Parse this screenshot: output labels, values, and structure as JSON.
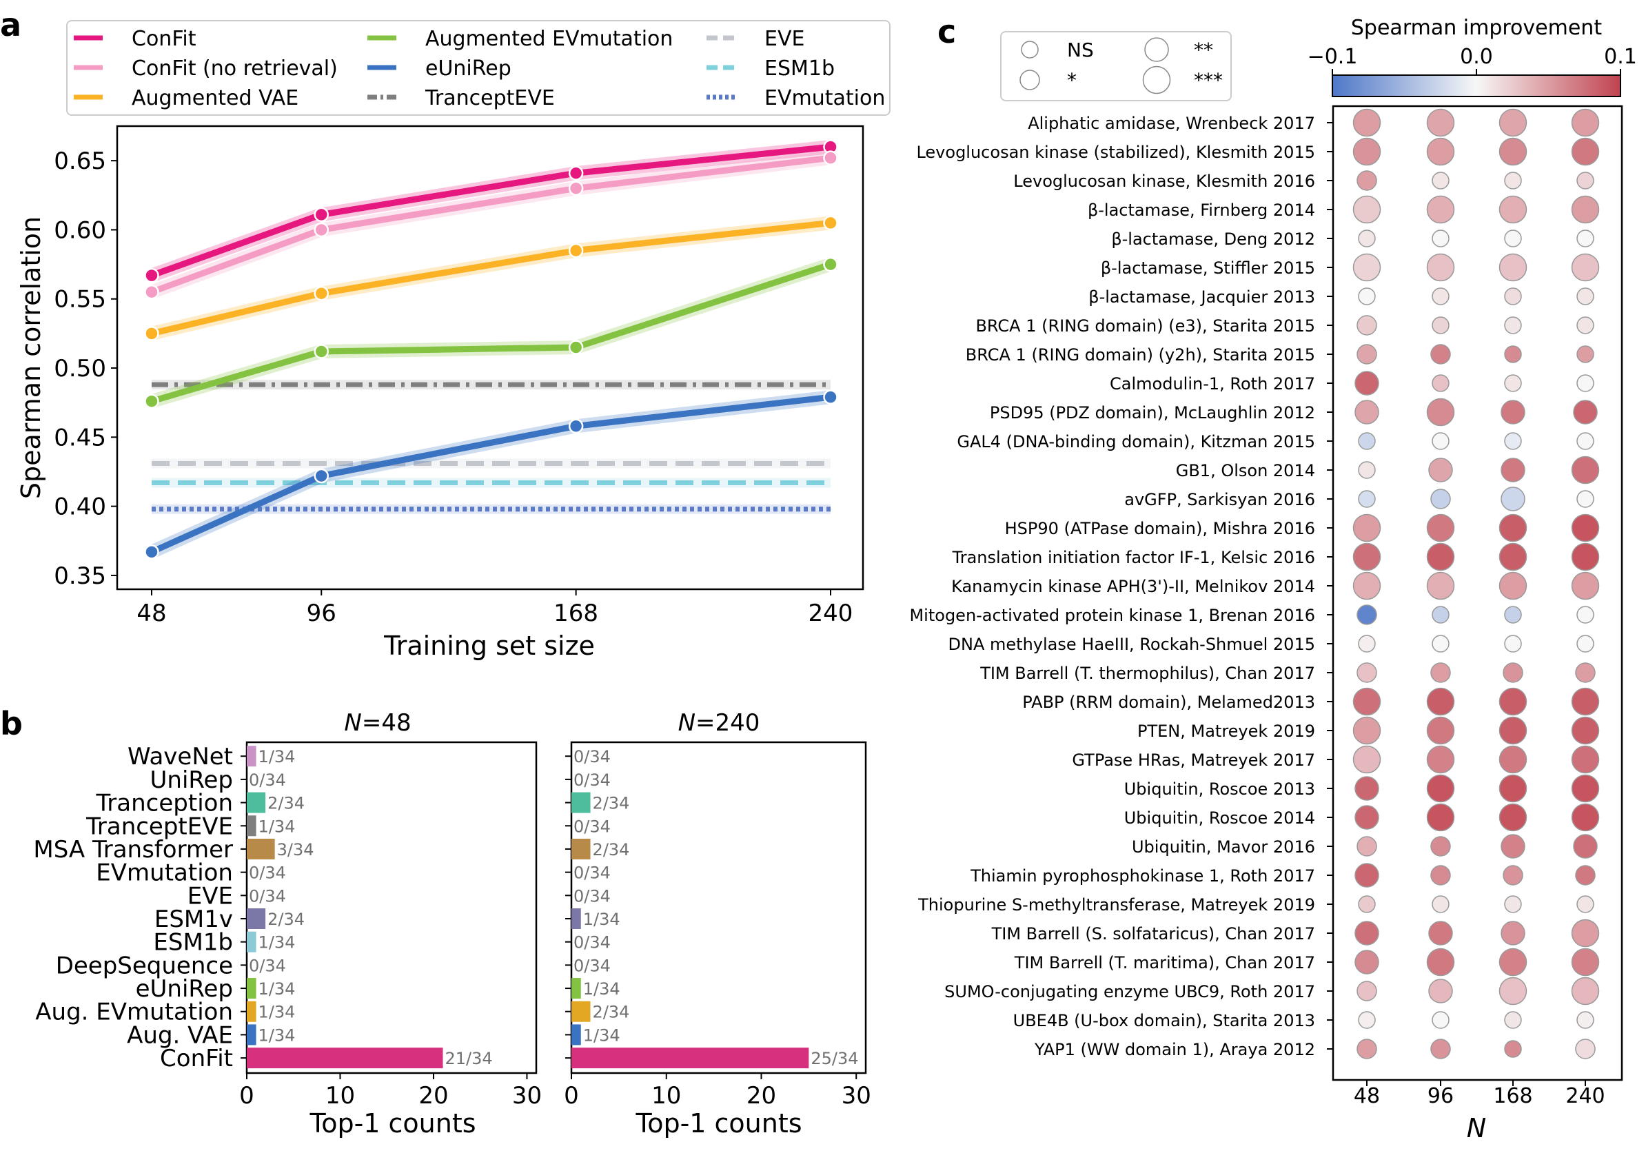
{
  "colors": {
    "confit": "#e6177f",
    "confit_nr": "#f59cc4",
    "aug_vae": "#fbb224",
    "aug_evm": "#84c341",
    "eunirep": "#3a73c1",
    "trancepteve": "#7f7f7f",
    "eve": "#c3c6cc",
    "esm1b": "#7fcfdc",
    "evmutation": "#5b7ac6",
    "heat_neg": "#4f78c8",
    "heat_mid": "#f7f7f7",
    "heat_pos": "#c0434f"
  },
  "panel_labels": {
    "a": "a",
    "b": "b",
    "c": "c"
  },
  "chart_data": [
    {
      "type": "line",
      "panel": "a",
      "xlabel": "Training set size",
      "ylabel": "Spearman correlation",
      "x": [
        48,
        96,
        168,
        240
      ],
      "ylim": [
        0.34,
        0.675
      ],
      "yticks": [
        "0.35",
        "0.40",
        "0.45",
        "0.50",
        "0.55",
        "0.60",
        "0.65"
      ],
      "legend_position": "top",
      "series": [
        {
          "name": "ConFit",
          "color_key": "confit",
          "style": "solid-marker",
          "values": [
            0.567,
            0.611,
            0.641,
            0.66
          ]
        },
        {
          "name": "ConFit (no retrieval)",
          "color_key": "confit_nr",
          "style": "solid-marker",
          "values": [
            0.555,
            0.6,
            0.63,
            0.652
          ]
        },
        {
          "name": "Augmented VAE",
          "color_key": "aug_vae",
          "style": "solid-marker",
          "values": [
            0.525,
            0.554,
            0.585,
            0.605
          ]
        },
        {
          "name": "Augmented EVmutation",
          "color_key": "aug_evm",
          "style": "solid-marker",
          "values": [
            0.476,
            0.512,
            0.515,
            0.575
          ]
        },
        {
          "name": "eUniRep",
          "color_key": "eunirep",
          "style": "solid-marker",
          "values": [
            0.367,
            0.422,
            0.458,
            0.479
          ]
        },
        {
          "name": "TranceptEVE",
          "color_key": "trancepteve",
          "style": "dashdot",
          "values": [
            0.488,
            0.488,
            0.488,
            0.488
          ]
        },
        {
          "name": "EVE",
          "color_key": "eve",
          "style": "dashed",
          "values": [
            0.431,
            0.431,
            0.431,
            0.431
          ]
        },
        {
          "name": "ESM1b",
          "color_key": "esm1b",
          "style": "dashed",
          "values": [
            0.417,
            0.417,
            0.417,
            0.417
          ]
        },
        {
          "name": "EVmutation",
          "color_key": "evmutation",
          "style": "dotted",
          "values": [
            0.398,
            0.398,
            0.398,
            0.398
          ]
        }
      ]
    },
    {
      "type": "bar",
      "panel": "b",
      "orientation": "horizontal",
      "xlabel": "Top-1 counts",
      "xlim": [
        0,
        31
      ],
      "xticks": [
        0,
        10,
        20,
        30
      ],
      "total": 34,
      "categories": [
        "WaveNet",
        "UniRep",
        "Tranception",
        "TranceptEVE",
        "MSA Transformer",
        "EVmutation",
        "EVE",
        "ESM1v",
        "ESM1b",
        "DeepSequence",
        "eUniRep",
        "Aug. EVmutation",
        "Aug. VAE",
        "ConFit"
      ],
      "bar_colors": [
        "#c993c7",
        "#9ecae1",
        "#4dbd9d",
        "#7f7f7f",
        "#b88a47",
        "#5b7ac6",
        "#c3c6cc",
        "#7b78a8",
        "#8ccad8",
        "#b0b0b0",
        "#84c341",
        "#e3a823",
        "#3a73c1",
        "#d6307f"
      ],
      "subplots": [
        {
          "title_var": "N",
          "title_val": "=48",
          "values": [
            1,
            0,
            2,
            1,
            3,
            0,
            0,
            2,
            1,
            0,
            1,
            1,
            1,
            21
          ],
          "labels": [
            "1/34",
            "0/34",
            "2/34",
            "1/34",
            "3/34",
            "0/34",
            "0/34",
            "2/34",
            "1/34",
            "0/34",
            "1/34",
            "1/34",
            "1/34",
            "21/34"
          ]
        },
        {
          "title_var": "N",
          "title_val": "=240",
          "values": [
            0,
            0,
            2,
            0,
            2,
            0,
            0,
            1,
            0,
            0,
            1,
            2,
            1,
            25
          ],
          "labels": [
            "0/34",
            "0/34",
            "2/34",
            "0/34",
            "2/34",
            "0/34",
            "0/34",
            "1/34",
            "0/34",
            "0/34",
            "1/34",
            "2/34",
            "1/34",
            "25/34"
          ]
        }
      ]
    },
    {
      "type": "heatmap",
      "panel": "c",
      "xlabel": "N",
      "x": [
        "48",
        "96",
        "168",
        "240"
      ],
      "colorbar": {
        "title": "Spearman improvement",
        "min": -0.1,
        "max": 0.1,
        "ticks": [
          "−0.1",
          "0.0",
          "0.1"
        ]
      },
      "size_legend": [
        {
          "label": "NS",
          "level": 0
        },
        {
          "label": "*",
          "level": 1
        },
        {
          "label": "**",
          "level": 2
        },
        {
          "label": "***",
          "level": 3
        }
      ],
      "rows": [
        {
          "label": "Aliphatic amidase, Wrenbeck 2017",
          "values": [
            0.05,
            0.045,
            0.045,
            0.05
          ],
          "sig": [
            3,
            3,
            3,
            3
          ]
        },
        {
          "label": "Levoglucosan kinase (stabilized), Klesmith 2015",
          "values": [
            0.055,
            0.05,
            0.06,
            0.07
          ],
          "sig": [
            3,
            3,
            3,
            3
          ]
        },
        {
          "label": "Levoglucosan kinase, Klesmith 2016",
          "values": [
            0.05,
            0.01,
            0.01,
            0.02
          ],
          "sig": [
            1,
            0,
            0,
            0
          ]
        },
        {
          "label": "β-lactamase, Firnberg 2014",
          "values": [
            0.025,
            0.04,
            0.04,
            0.05
          ],
          "sig": [
            3,
            3,
            3,
            3
          ]
        },
        {
          "label": "β-lactamase, Deng 2012",
          "values": [
            0.01,
            0.0,
            0.0,
            0.0
          ],
          "sig": [
            0,
            0,
            0,
            0
          ]
        },
        {
          "label": "β-lactamase, Stiffler 2015",
          "values": [
            0.02,
            0.03,
            0.03,
            0.03
          ],
          "sig": [
            3,
            3,
            3,
            3
          ]
        },
        {
          "label": "β-lactamase, Jacquier 2013",
          "values": [
            0.0,
            0.01,
            0.015,
            0.01
          ],
          "sig": [
            0,
            0,
            0,
            0
          ]
        },
        {
          "label": "BRCA 1 (RING domain) (e3), Starita 2015",
          "values": [
            0.025,
            0.02,
            0.01,
            0.01
          ],
          "sig": [
            1,
            0,
            0,
            0
          ]
        },
        {
          "label": "BRCA 1 (RING domain) (y2h), Starita 2015",
          "values": [
            0.045,
            0.065,
            0.06,
            0.05
          ],
          "sig": [
            1,
            1,
            0,
            0
          ]
        },
        {
          "label": "Calmodulin-1, Roth 2017",
          "values": [
            0.08,
            0.03,
            0.01,
            0.0
          ],
          "sig": [
            2,
            0,
            0,
            0
          ]
        },
        {
          "label": "PSD95 (PDZ domain), McLaughlin 2012",
          "values": [
            0.045,
            0.06,
            0.07,
            0.08
          ],
          "sig": [
            2,
            3,
            2,
            2
          ]
        },
        {
          "label": "GAL4 (DNA-binding domain), Kitzman 2015",
          "values": [
            -0.025,
            0.0,
            -0.01,
            0.0
          ],
          "sig": [
            0,
            0,
            0,
            0
          ]
        },
        {
          "label": "GB1, Olson 2014",
          "values": [
            0.01,
            0.045,
            0.07,
            0.075
          ],
          "sig": [
            0,
            2,
            2,
            3
          ]
        },
        {
          "label": "avGFP, Sarkisyan 2016",
          "values": [
            -0.02,
            -0.03,
            -0.025,
            0.0
          ],
          "sig": [
            0,
            1,
            2,
            0
          ]
        },
        {
          "label": "HSP90 (ATPase domain), Mishra 2016",
          "values": [
            0.05,
            0.07,
            0.085,
            0.09
          ],
          "sig": [
            3,
            3,
            3,
            3
          ]
        },
        {
          "label": "Translation initiation factor IF-1, Kelsic 2016",
          "values": [
            0.075,
            0.085,
            0.085,
            0.09
          ],
          "sig": [
            3,
            3,
            3,
            3
          ]
        },
        {
          "label": "Kanamycin kinase APH(3')-II, Melnikov 2014",
          "values": [
            0.04,
            0.04,
            0.05,
            0.05
          ],
          "sig": [
            3,
            3,
            3,
            3
          ]
        },
        {
          "label": "Mitogen-activated protein kinase 1, Brenan 2016",
          "values": [
            -0.09,
            -0.03,
            -0.03,
            0.0
          ],
          "sig": [
            1,
            0,
            0,
            0
          ]
        },
        {
          "label": "DNA methylase HaeIII, Rockah-Shmuel 2015",
          "values": [
            0.005,
            0.0,
            0.0,
            0.0
          ],
          "sig": [
            0,
            0,
            0,
            0
          ]
        },
        {
          "label": "TIM Barrell (T. thermophilus), Chan 2017",
          "values": [
            0.03,
            0.05,
            0.055,
            0.05
          ],
          "sig": [
            1,
            1,
            1,
            1
          ]
        },
        {
          "label": "PABP (RRM domain), Melamed2013",
          "values": [
            0.075,
            0.085,
            0.085,
            0.085
          ],
          "sig": [
            3,
            3,
            3,
            3
          ]
        },
        {
          "label": "PTEN, Matreyek 2019",
          "values": [
            0.05,
            0.07,
            0.085,
            0.085
          ],
          "sig": [
            3,
            3,
            3,
            3
          ]
        },
        {
          "label": "GTPase HRas, Matreyek 2017",
          "values": [
            0.035,
            0.065,
            0.07,
            0.075
          ],
          "sig": [
            3,
            3,
            3,
            3
          ]
        },
        {
          "label": "Ubiquitin, Roscoe 2013",
          "values": [
            0.08,
            0.09,
            0.09,
            0.09
          ],
          "sig": [
            2,
            3,
            3,
            3
          ]
        },
        {
          "label": "Ubiquitin, Roscoe 2014",
          "values": [
            0.08,
            0.09,
            0.09,
            0.09
          ],
          "sig": [
            2,
            3,
            3,
            3
          ]
        },
        {
          "label": "Ubiquitin, Mavor 2016",
          "values": [
            0.04,
            0.06,
            0.065,
            0.075
          ],
          "sig": [
            1,
            1,
            2,
            2
          ]
        },
        {
          "label": "Thiamin pyrophosphokinase 1, Roth 2017",
          "values": [
            0.08,
            0.06,
            0.055,
            0.07
          ],
          "sig": [
            2,
            1,
            1,
            1
          ]
        },
        {
          "label": "Thiopurine S-methyltransferase, Matreyek 2019",
          "values": [
            0.025,
            0.01,
            0.01,
            0.01
          ],
          "sig": [
            0,
            0,
            0,
            0
          ]
        },
        {
          "label": "TIM Barrell (S. solfataricus), Chan 2017",
          "values": [
            0.075,
            0.07,
            0.055,
            0.05
          ],
          "sig": [
            2,
            2,
            2,
            3
          ]
        },
        {
          "label": "TIM Barrell (T. maritima), Chan 2017",
          "values": [
            0.06,
            0.07,
            0.065,
            0.065
          ],
          "sig": [
            2,
            3,
            3,
            3
          ]
        },
        {
          "label": "SUMO-conjugating enzyme UBC9, Roth 2017",
          "values": [
            0.03,
            0.035,
            0.03,
            0.035
          ],
          "sig": [
            1,
            2,
            3,
            3
          ]
        },
        {
          "label": "UBE4B (U-box domain), Starita 2013",
          "values": [
            0.005,
            0.0,
            0.01,
            0.005
          ],
          "sig": [
            0,
            0,
            0,
            0
          ]
        },
        {
          "label": "YAP1 (WW domain 1), Araya 2012",
          "values": [
            0.05,
            0.055,
            0.06,
            0.015
          ],
          "sig": [
            1,
            1,
            0,
            1
          ]
        }
      ]
    }
  ]
}
